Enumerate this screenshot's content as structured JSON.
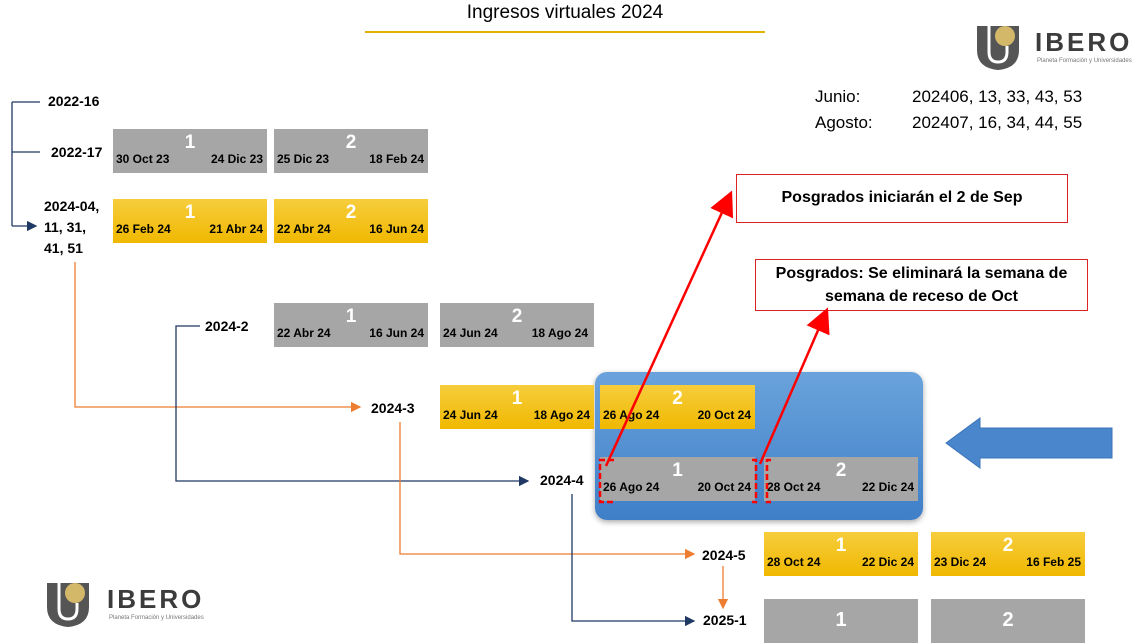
{
  "title": "Ingresos virtuales 2024",
  "brand": {
    "name": "IBERO",
    "tagline": "Planeta Formación y Universidades"
  },
  "months": [
    {
      "month": "Junio:",
      "codes": "202406, 13, 33, 43, 53"
    },
    {
      "month": "Agosto:",
      "codes": "202407, 16, 34, 44, 55"
    }
  ],
  "cohorts": {
    "c2022_16": "2022-16",
    "c2022_17": "2022-17",
    "c2024_04": "2024-04,\n11, 31,\n41, 51",
    "c2024_2": "2024-2",
    "c2024_3": "2024-3",
    "c2024_4": "2024-4",
    "c2024_5": "2024-5",
    "c2025_1": "2025-1"
  },
  "blocks": {
    "r2022_17_b1": {
      "start": "30 Oct 23",
      "num": "1",
      "end": "24 Dic 23"
    },
    "r2022_17_b2": {
      "start": "25 Dic 23",
      "num": "2",
      "end": "18 Feb 24"
    },
    "r2024_04_b1": {
      "start": "26 Feb 24",
      "num": "1",
      "end": "21 Abr 24"
    },
    "r2024_04_b2": {
      "start": "22 Abr 24",
      "num": "2",
      "end": "16 Jun 24"
    },
    "r2024_2_b1": {
      "start": "22 Abr 24",
      "num": "1",
      "end": "16 Jun 24"
    },
    "r2024_2_b2": {
      "start": "24 Jun 24",
      "num": "2",
      "end": "18 Ago 24"
    },
    "r2024_3_b1": {
      "start": "24 Jun 24",
      "num": "1",
      "end": "18 Ago 24"
    },
    "r2024_3_b2": {
      "start": "26 Ago 24",
      "num": "2",
      "end": "20 Oct 24"
    },
    "r2024_4_b1": {
      "start": "26 Ago 24",
      "num": "1",
      "end": "20 Oct 24"
    },
    "r2024_4_b2": {
      "start": "28 Oct 24",
      "num": "2",
      "end": "22 Dic 24"
    },
    "r2024_5_b1": {
      "start": "28 Oct 24",
      "num": "1",
      "end": "22 Dic 24"
    },
    "r2024_5_b2": {
      "start": "23 Dic 24",
      "num": "2",
      "end": "16 Feb 25"
    },
    "r2025_1_b1": {
      "num": "1"
    },
    "r2025_1_b2": {
      "num": "2"
    }
  },
  "notes": {
    "note1": "Posgrados iniciarán el 2 de Sep",
    "note2": "Posgrados: Se eliminará la semana de semana de receso de Oct"
  },
  "colors": {
    "gold": "#f0b800",
    "gray": "#a6a6a6",
    "panel": "#4a86cc",
    "arrow_orange": "#ed7d31",
    "arrow_navy": "#1f3864",
    "arrow_red": "#ff0000"
  }
}
